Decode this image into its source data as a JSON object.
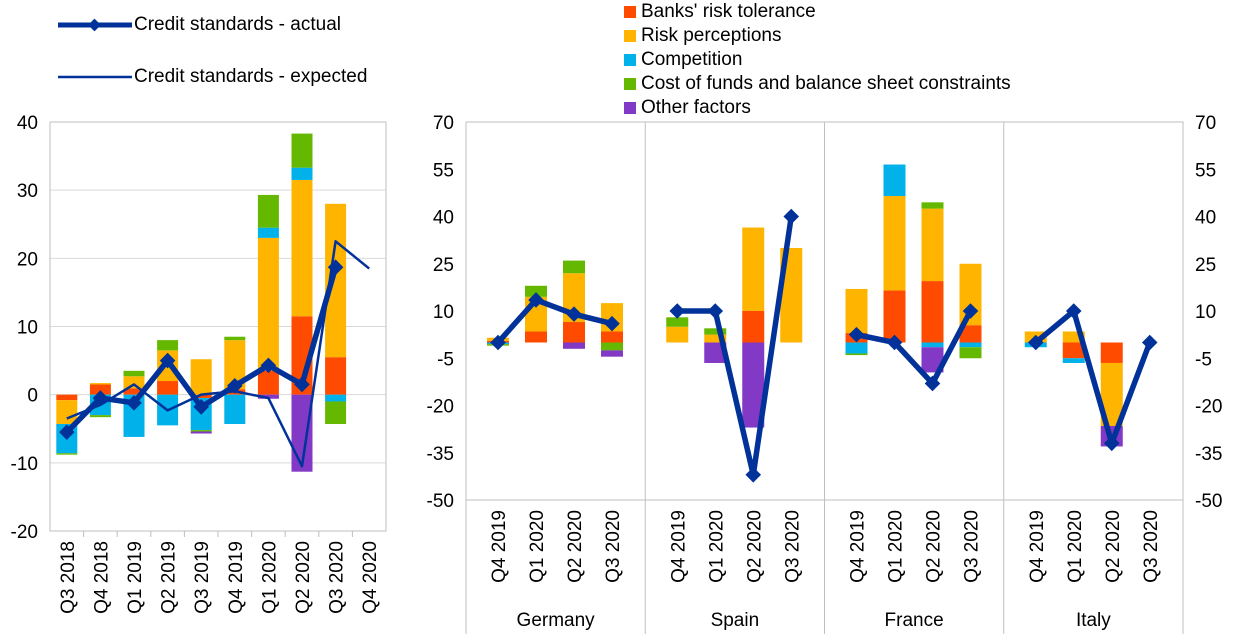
{
  "colors": {
    "risk_tolerance": "#FF4B00",
    "risk_perceptions": "#FFB400",
    "competition": "#00B1EA",
    "cost_of_funds": "#65B800",
    "other": "#8139C6",
    "actual": "#003299",
    "expected": "#003299",
    "grid": "#D9D9D9",
    "axis": "#BFBFBF"
  },
  "legend": {
    "actual_label": "Credit standards - actual",
    "expected_label": "Credit standards - expected",
    "risk_tolerance_label": "Banks' risk tolerance",
    "risk_perceptions_label": "Risk perceptions",
    "competition_label": "Competition",
    "cost_of_funds_label": "Cost of funds and balance sheet constraints",
    "other_label": "Other factors"
  },
  "chart_data": [
    {
      "type": "bar",
      "stacked": true,
      "title": "",
      "ylim": [
        -20,
        40
      ],
      "yticks": [
        -20,
        -10,
        0,
        10,
        20,
        30,
        40
      ],
      "categories": [
        "Q3 2018",
        "Q4 2018",
        "Q1 2019",
        "Q2 2019",
        "Q3 2019",
        "Q4 2019",
        "Q1 2020",
        "Q2 2020",
        "Q3 2020",
        "Q4 2020"
      ],
      "series": [
        {
          "name": "Banks' risk tolerance",
          "key": "risk_tolerance",
          "values": [
            -0.8,
            1.5,
            0.9,
            2.0,
            -0.5,
            0.8,
            3.5,
            11.5,
            5.5,
            0
          ]
        },
        {
          "name": "Risk perceptions",
          "key": "risk_perceptions",
          "values": [
            -3.5,
            0.2,
            1.8,
            4.5,
            5.2,
            7.2,
            19.5,
            20.0,
            22.5,
            0
          ]
        },
        {
          "name": "Competition",
          "key": "competition",
          "values": [
            -4.3,
            -3.0,
            -6.2,
            -4.5,
            -4.7,
            -4.3,
            1.5,
            1.8,
            -1.0,
            0
          ]
        },
        {
          "name": "Cost of funds and balance sheet constraints",
          "key": "cost_of_funds",
          "values": [
            -0.2,
            -0.3,
            0.8,
            1.5,
            -0.2,
            0.5,
            4.8,
            5.0,
            -3.3,
            0
          ]
        },
        {
          "name": "Other factors",
          "key": "other",
          "values": [
            0,
            0,
            0,
            0,
            -0.3,
            0,
            -0.6,
            -11.3,
            0,
            0
          ]
        }
      ],
      "lines": [
        {
          "name": "Credit standards - actual",
          "key": "actual",
          "values": [
            -5.5,
            -0.5,
            -1.2,
            5.0,
            -1.8,
            1.3,
            4.3,
            1.5,
            18.7,
            null
          ]
        },
        {
          "name": "Credit standards - expected",
          "key": "expected",
          "values": [
            -3.5,
            -1.5,
            1.5,
            -2.3,
            0.0,
            0.5,
            -0.5,
            -10.5,
            22.5,
            18.5
          ]
        }
      ]
    },
    {
      "type": "bar",
      "stacked": true,
      "title": "",
      "ylim": [
        -50,
        70
      ],
      "yticks": [
        -50,
        -35,
        -20,
        -5,
        10,
        25,
        40,
        55,
        70
      ],
      "group_labels": [
        "Germany",
        "Spain",
        "France",
        "Italy"
      ],
      "categories": [
        [
          "Q4 2019",
          "Q1 2020",
          "Q2 2020",
          "Q3 2020"
        ],
        [
          "Q4 2019",
          "Q1 2020",
          "Q2 2020",
          "Q3 2020"
        ],
        [
          "Q4 2019",
          "Q1 2020",
          "Q2 2020",
          "Q3 2020"
        ],
        [
          "Q4 2019",
          "Q1 2020",
          "Q2 2020",
          "Q3 2020"
        ]
      ],
      "series": [
        {
          "name": "Banks' risk tolerance",
          "key": "risk_tolerance",
          "values": [
            [
              0.5,
              3.5,
              6.5,
              3.5
            ],
            [
              0,
              0,
              10,
              0
            ],
            [
              3,
              16.5,
              19.5,
              5.5
            ],
            [
              0,
              -5,
              -6.5,
              0
            ]
          ]
        },
        {
          "name": "Risk perceptions",
          "key": "risk_perceptions",
          "values": [
            [
              1.0,
              11,
              15.5,
              9
            ],
            [
              5,
              2.5,
              26.5,
              30
            ],
            [
              14,
              30,
              23,
              19.5
            ],
            [
              3.5,
              3.5,
              -20,
              0
            ]
          ]
        },
        {
          "name": "Competition",
          "key": "competition",
          "values": [
            [
              -0.5,
              0,
              0,
              0
            ],
            [
              0,
              0,
              0,
              0
            ],
            [
              -3.5,
              10,
              -1.5,
              -1.5
            ],
            [
              -1.5,
              -1.5,
              0,
              0
            ]
          ]
        },
        {
          "name": "Cost of funds and balance sheet constraints",
          "key": "cost_of_funds",
          "values": [
            [
              -0.5,
              3.5,
              4,
              -2.5
            ],
            [
              3,
              2,
              0,
              0
            ],
            [
              -0.5,
              0,
              2,
              -3.5
            ],
            [
              0,
              0,
              0,
              0
            ]
          ]
        },
        {
          "name": "Other factors",
          "key": "other",
          "values": [
            [
              0,
              0,
              -2,
              -2
            ],
            [
              0,
              -6.5,
              -27,
              0
            ],
            [
              0,
              0,
              -8,
              0
            ],
            [
              0,
              0,
              -6.5,
              0
            ]
          ]
        }
      ],
      "lines": [
        {
          "name": "Credit standards - actual",
          "key": "actual",
          "values": [
            [
              0,
              13.5,
              9,
              6
            ],
            [
              10,
              10,
              -42,
              40
            ],
            [
              2.5,
              0,
              -13,
              10
            ],
            [
              0,
              10,
              -32,
              0
            ]
          ]
        }
      ]
    }
  ]
}
